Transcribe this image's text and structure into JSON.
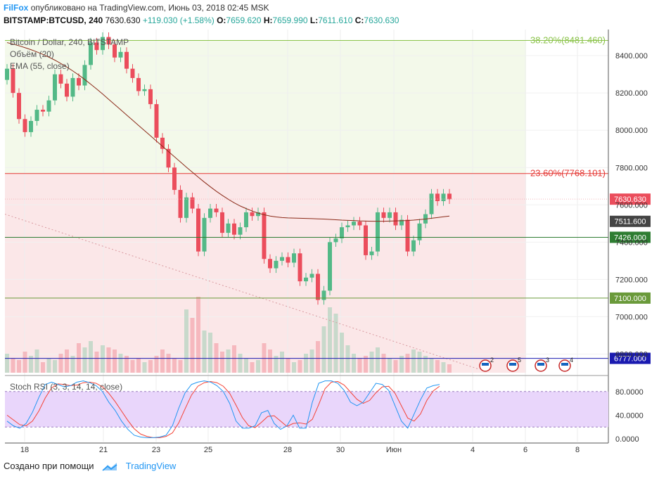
{
  "header": {
    "author": "FilFox",
    "published": "опубликовано на TradingView.com, Июнь 03, 2018 02:45 MSK",
    "symbol": "BITSTAMP:BTCUSD, 240",
    "last": "7630.630",
    "change": "+119.030 (+1.58%)",
    "o_label": "O:",
    "o": "7659.620",
    "h_label": "H:",
    "h": "7659.990",
    "l_label": "L:",
    "l": "7611.610",
    "c_label": "C:",
    "c": "7630.630"
  },
  "legend": {
    "main": "Bitcoin / Dollar, 240, BITSTAMP",
    "volume": "Объём (20)",
    "ema": "EMA (55, close)",
    "stoch": "Stoch RSI (3, 3, 14, 14, close)"
  },
  "footer": {
    "created": "Создано при помощи",
    "brand": "TradingView"
  },
  "colors": {
    "up": "#53b987",
    "down": "#eb4d5c",
    "ema": "#8b2a18",
    "fib_top": "#f3f9ea",
    "fib_mid": "#fbe7e8",
    "stoch_k": "#2196f3",
    "stoch_d": "#f44336",
    "stoch_band": "#e9d6fb",
    "level_green": "#2e7d32",
    "level_blue": "#1a1ab0"
  },
  "chart_data": {
    "type": "candlestick",
    "y_ticks": [
      "8400.000",
      "8200.000",
      "8000.000",
      "7800.000",
      "7600.000",
      "7400.000",
      "7200.000",
      "7000.000",
      "6800.000"
    ],
    "ylim": [
      6700,
      8540
    ],
    "x_ticks": [
      "18",
      "21",
      "23",
      "25",
      "28",
      "30",
      "Июн",
      "4",
      "6",
      "8"
    ],
    "fib_levels": [
      {
        "label": "38.20%(8481.460)",
        "value": 8481.46,
        "color": "#8bc34a"
      },
      {
        "label": "23.60%(7768.101)",
        "value": 7768.101,
        "color": "#e53935"
      }
    ],
    "price_levels": [
      {
        "label": "7630.630",
        "value": 7630.63,
        "color": "#eb4d5c"
      },
      {
        "label": "7511.600",
        "value": 7511.6,
        "color": "#444444"
      },
      {
        "label": "7426.000",
        "value": 7426.0,
        "color": "#2e7d32"
      },
      {
        "label": "7100.000",
        "value": 7100.0,
        "color": "#6a9a3a"
      },
      {
        "label": "6777.000",
        "value": 6777.0,
        "color": "#1a1ab0"
      }
    ],
    "candles": [
      {
        "o": 8270,
        "c": 8330
      },
      {
        "o": 8330,
        "c": 8200
      },
      {
        "o": 8200,
        "c": 8060
      },
      {
        "o": 8060,
        "c": 7990
      },
      {
        "o": 7990,
        "c": 8050
      },
      {
        "o": 8050,
        "c": 8110
      },
      {
        "o": 8110,
        "c": 8100
      },
      {
        "o": 8100,
        "c": 8160
      },
      {
        "o": 8160,
        "c": 8300
      },
      {
        "o": 8300,
        "c": 8250
      },
      {
        "o": 8250,
        "c": 8180
      },
      {
        "o": 8180,
        "c": 8280
      },
      {
        "o": 8280,
        "c": 8240
      },
      {
        "o": 8240,
        "c": 8350
      },
      {
        "o": 8350,
        "c": 8470
      },
      {
        "o": 8470,
        "c": 8430
      },
      {
        "o": 8430,
        "c": 8500
      },
      {
        "o": 8500,
        "c": 8460
      },
      {
        "o": 8460,
        "c": 8390
      },
      {
        "o": 8390,
        "c": 8420
      },
      {
        "o": 8420,
        "c": 8330
      },
      {
        "o": 8330,
        "c": 8280
      },
      {
        "o": 8280,
        "c": 8210
      },
      {
        "o": 8210,
        "c": 8220
      },
      {
        "o": 8220,
        "c": 8140
      },
      {
        "o": 8140,
        "c": 7960
      },
      {
        "o": 7960,
        "c": 7900
      },
      {
        "o": 7900,
        "c": 7800
      },
      {
        "o": 7800,
        "c": 7680
      },
      {
        "o": 7680,
        "c": 7530
      },
      {
        "o": 7530,
        "c": 7640
      },
      {
        "o": 7640,
        "c": 7580
      },
      {
        "o": 7580,
        "c": 7350
      },
      {
        "o": 7350,
        "c": 7530
      },
      {
        "o": 7530,
        "c": 7580
      },
      {
        "o": 7580,
        "c": 7560
      },
      {
        "o": 7560,
        "c": 7450
      },
      {
        "o": 7450,
        "c": 7500
      },
      {
        "o": 7500,
        "c": 7440
      },
      {
        "o": 7440,
        "c": 7480
      },
      {
        "o": 7480,
        "c": 7560
      },
      {
        "o": 7560,
        "c": 7540
      },
      {
        "o": 7540,
        "c": 7560
      },
      {
        "o": 7560,
        "c": 7310
      },
      {
        "o": 7310,
        "c": 7260
      },
      {
        "o": 7260,
        "c": 7300
      },
      {
        "o": 7300,
        "c": 7320
      },
      {
        "o": 7320,
        "c": 7290
      },
      {
        "o": 7290,
        "c": 7340
      },
      {
        "o": 7340,
        "c": 7190
      },
      {
        "o": 7190,
        "c": 7210
      },
      {
        "o": 7210,
        "c": 7230
      },
      {
        "o": 7230,
        "c": 7090
      },
      {
        "o": 7090,
        "c": 7140
      },
      {
        "o": 7140,
        "c": 7400
      },
      {
        "o": 7400,
        "c": 7420
      },
      {
        "o": 7420,
        "c": 7480
      },
      {
        "o": 7480,
        "c": 7490
      },
      {
        "o": 7490,
        "c": 7510
      },
      {
        "o": 7510,
        "c": 7490
      },
      {
        "o": 7490,
        "c": 7330
      },
      {
        "o": 7330,
        "c": 7350
      },
      {
        "o": 7350,
        "c": 7560
      },
      {
        "o": 7560,
        "c": 7530
      },
      {
        "o": 7530,
        "c": 7560
      },
      {
        "o": 7560,
        "c": 7490
      },
      {
        "o": 7490,
        "c": 7520
      },
      {
        "o": 7520,
        "c": 7350
      },
      {
        "o": 7350,
        "c": 7410
      },
      {
        "o": 7410,
        "c": 7500
      },
      {
        "o": 7500,
        "c": 7550
      },
      {
        "o": 7550,
        "c": 7660
      },
      {
        "o": 7660,
        "c": 7620
      },
      {
        "o": 7620,
        "c": 7660
      },
      {
        "o": 7660,
        "c": 7630
      }
    ],
    "ema55": [
      8470,
      8462,
      8453,
      8443,
      8432,
      8420,
      8407,
      8392,
      8376,
      8358,
      8339,
      8318,
      8296,
      8272,
      8247,
      8221,
      8194,
      8166,
      8138,
      8110,
      8082,
      8054,
      8026,
      7998,
      7970,
      7942,
      7914,
      7886,
      7858,
      7830,
      7802,
      7775,
      7748,
      7722,
      7697,
      7673,
      7651,
      7630,
      7611,
      7594,
      7580,
      7567,
      7556,
      7547,
      7540,
      7535,
      7532,
      7530,
      7529,
      7528,
      7527,
      7526,
      7525,
      7524,
      7522,
      7520,
      7518,
      7517,
      7516,
      7514,
      7513,
      7512,
      7512,
      7512,
      7513,
      7514,
      7515,
      7516,
      7518,
      7521,
      7524,
      7528,
      7532,
      7536,
      7540
    ],
    "volume": [
      18,
      14,
      12,
      20,
      16,
      22,
      10,
      14,
      12,
      18,
      22,
      16,
      28,
      24,
      30,
      20,
      26,
      24,
      22,
      18,
      16,
      12,
      14,
      10,
      12,
      16,
      22,
      18,
      14,
      12,
      60,
      52,
      72,
      40,
      38,
      28,
      20,
      22,
      26,
      18,
      14,
      10,
      12,
      28,
      22,
      16,
      20,
      14,
      10,
      12,
      18,
      22,
      30,
      44,
      62,
      56,
      38,
      26,
      18,
      14,
      16,
      20,
      24,
      18,
      14,
      12,
      16,
      18,
      22,
      20,
      16,
      14,
      12,
      10,
      8
    ],
    "stoch_k": [
      30,
      22,
      18,
      26,
      45,
      70,
      92,
      96,
      92,
      88,
      90,
      96,
      98,
      95,
      90,
      80,
      62,
      48,
      30,
      16,
      6,
      3,
      2,
      2,
      3,
      6,
      22,
      52,
      78,
      92,
      96,
      98,
      96,
      90,
      80,
      60,
      30,
      18,
      18,
      22,
      44,
      48,
      26,
      16,
      22,
      40,
      18,
      18,
      62,
      94,
      98,
      98,
      94,
      82,
      62,
      56,
      62,
      78,
      94,
      92,
      82,
      56,
      30,
      18,
      42,
      66,
      86,
      90,
      92
    ],
    "stoch_d": [
      40,
      32,
      24,
      22,
      30,
      47,
      69,
      86,
      93,
      92,
      90,
      91,
      95,
      96,
      94,
      88,
      77,
      63,
      47,
      31,
      17,
      8,
      4,
      2,
      2,
      4,
      10,
      27,
      51,
      74,
      89,
      95,
      97,
      95,
      89,
      77,
      57,
      36,
      22,
      19,
      28,
      38,
      39,
      30,
      21,
      26,
      27,
      25,
      33,
      58,
      85,
      96,
      97,
      91,
      79,
      67,
      60,
      65,
      78,
      88,
      89,
      77,
      56,
      35,
      30,
      42,
      65,
      81,
      89
    ]
  }
}
